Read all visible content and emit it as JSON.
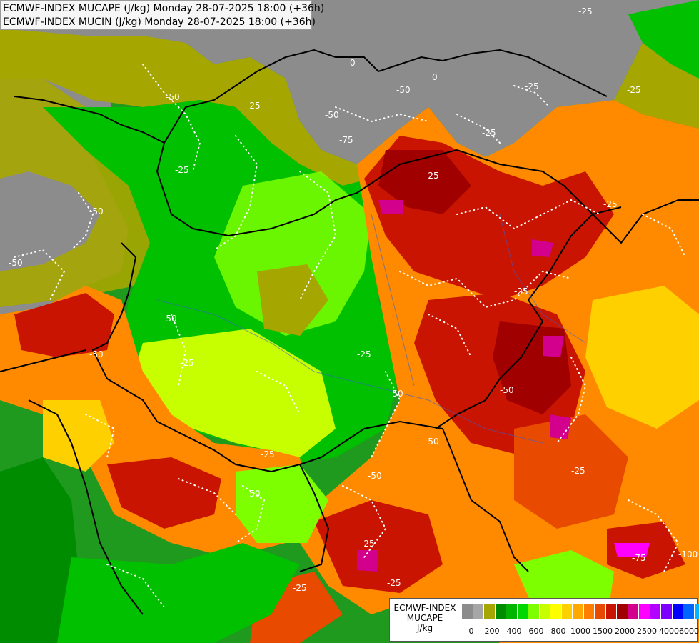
{
  "title": {
    "line1": "ECMWF-INDEX MUCAPE (J/kg) Monday 28-07-2025 18:00 (+36h)",
    "line2": "ECMWF-INDEX MUCIN (J/kg) Monday 28-07-2025 18:00 (+36h)"
  },
  "legend": {
    "model": "ECMWF-INDEX",
    "variable": "MUCAPE",
    "unit": "J/kg",
    "colors": [
      "#8c8c8c",
      "#a6a6a6",
      "#a6a600",
      "#008c00",
      "#00b400",
      "#00d800",
      "#7dff00",
      "#c8ff00",
      "#ffff00",
      "#ffd000",
      "#ffa800",
      "#ff7d00",
      "#e84a00",
      "#c81400",
      "#a00000",
      "#d2008c",
      "#ff00ff",
      "#b400ff",
      "#7d00ff",
      "#0000ff",
      "#0064ff",
      "#00b4ff",
      "#00ffff",
      "#ffffff"
    ],
    "ticks": [
      "0",
      "200",
      "400",
      "600",
      "800",
      "1000",
      "1500",
      "2000",
      "2500",
      "4000",
      "6000"
    ]
  },
  "contour_labels": [
    "-50",
    "-25",
    "-50",
    "-25",
    "-50",
    "-25",
    "-50",
    "-25",
    "-50",
    "-25",
    "-25",
    "-50",
    "-25",
    "-50",
    "-25",
    "-25",
    "-50",
    "-50",
    "-25",
    "-50",
    "-25",
    "-75",
    "-100",
    "-25",
    "-50",
    "-25",
    "-25",
    "-25",
    "0",
    "0",
    "-25",
    "-75",
    "-50"
  ]
}
